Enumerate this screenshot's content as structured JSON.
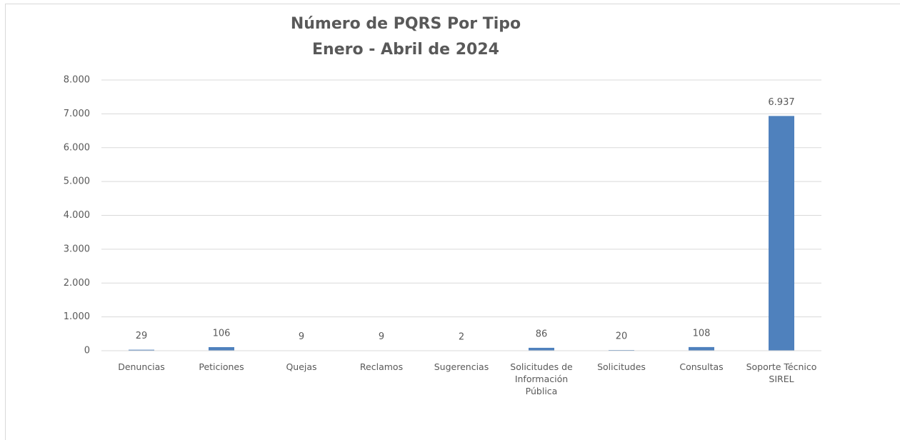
{
  "chart_data": {
    "type": "bar",
    "title": "Número de PQRS Por Tipo",
    "subtitle": "Enero - Abril de 2024",
    "categories": [
      "Denuncias",
      "Peticiones",
      "Quejas",
      "Reclamos",
      "Sugerencias",
      "Solicitudes de Información Pública",
      "Solicitudes",
      "Consultas",
      "Soporte Técnico SIREL"
    ],
    "values": [
      29,
      106,
      9,
      9,
      2,
      86,
      20,
      108,
      6937
    ],
    "value_labels": [
      "29",
      "106",
      "9",
      "9",
      "2",
      "86",
      "20",
      "108",
      "6.937"
    ],
    "color": "#4f81bd",
    "ylim": [
      0,
      8000
    ],
    "yticks": [
      0,
      {
        "value": 1000,
        "label": "1.000"
      },
      {
        "value": 2000,
        "label": "2.000"
      },
      {
        "value": 3000,
        "label": "3.000"
      },
      {
        "value": 4000,
        "label": "4.000"
      },
      {
        "value": 5000,
        "label": "5.000"
      },
      {
        "value": 6000,
        "label": "6.000"
      },
      {
        "value": 7000,
        "label": "7.000"
      },
      {
        "value": 8000,
        "label": "8.000"
      }
    ],
    "grid": true
  }
}
